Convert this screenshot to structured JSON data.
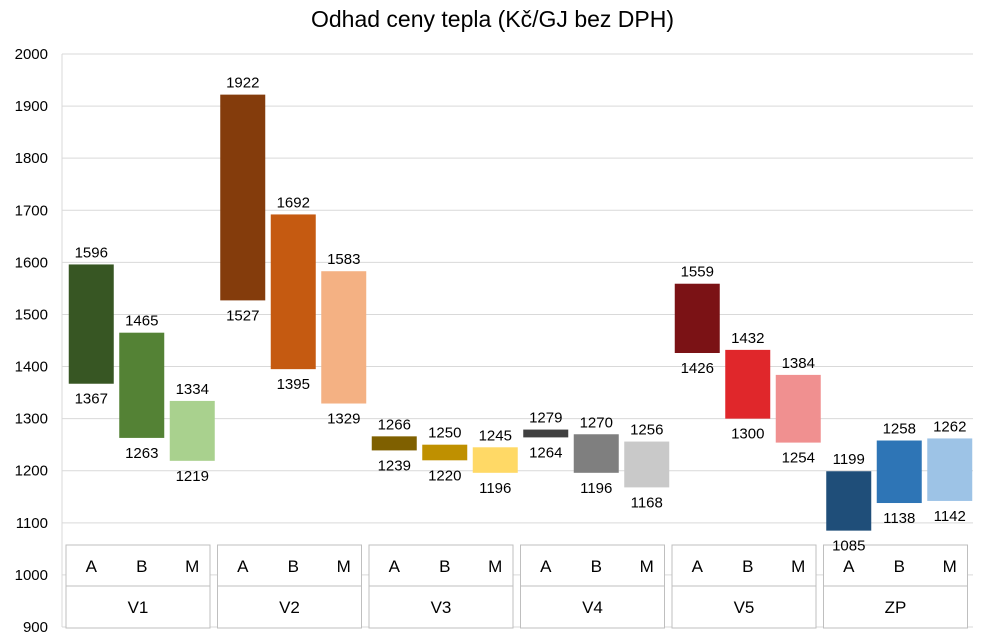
{
  "chart_data": {
    "type": "bar",
    "subtype": "floating range bars",
    "title": "Odhad ceny tepla (Kč/GJ bez DPH)",
    "xlabel": "",
    "ylabel": "",
    "ylim": [
      900,
      2000
    ],
    "yticks": [
      900,
      1000,
      1100,
      1200,
      1300,
      1400,
      1500,
      1600,
      1700,
      1800,
      1900,
      2000
    ],
    "grid": true,
    "groups": [
      {
        "name": "V1",
        "bars": [
          {
            "category": "A",
            "low": 1367,
            "high": 1596,
            "color": "#375623"
          },
          {
            "category": "B",
            "low": 1263,
            "high": 1465,
            "color": "#548235"
          },
          {
            "category": "M",
            "low": 1219,
            "high": 1334,
            "color": "#A9D18E"
          }
        ]
      },
      {
        "name": "V2",
        "bars": [
          {
            "category": "A",
            "low": 1527,
            "high": 1922,
            "color": "#843C0C"
          },
          {
            "category": "B",
            "low": 1395,
            "high": 1692,
            "color": "#C55A11"
          },
          {
            "category": "M",
            "low": 1329,
            "high": 1583,
            "color": "#F4B183"
          }
        ]
      },
      {
        "name": "V3",
        "bars": [
          {
            "category": "A",
            "low": 1239,
            "high": 1266,
            "color": "#7F6000"
          },
          {
            "category": "B",
            "low": 1220,
            "high": 1250,
            "color": "#BF9000"
          },
          {
            "category": "M",
            "low": 1196,
            "high": 1245,
            "color": "#FFD966"
          }
        ]
      },
      {
        "name": "V4",
        "bars": [
          {
            "category": "A",
            "low": 1264,
            "high": 1279,
            "color": "#404040"
          },
          {
            "category": "B",
            "low": 1196,
            "high": 1270,
            "color": "#7F7F7F"
          },
          {
            "category": "M",
            "low": 1168,
            "high": 1256,
            "color": "#C9C9C9"
          }
        ]
      },
      {
        "name": "V5",
        "bars": [
          {
            "category": "A",
            "low": 1426,
            "high": 1559,
            "color": "#7B1215"
          },
          {
            "category": "B",
            "low": 1300,
            "high": 1432,
            "color": "#E0272B"
          },
          {
            "category": "M",
            "low": 1254,
            "high": 1384,
            "color": "#F09090"
          }
        ]
      },
      {
        "name": "ZP",
        "bars": [
          {
            "category": "A",
            "low": 1085,
            "high": 1199,
            "color": "#1F4E79"
          },
          {
            "category": "B",
            "low": 1138,
            "high": 1258,
            "color": "#2E75B6"
          },
          {
            "category": "M",
            "low": 1142,
            "high": 1262,
            "color": "#9DC3E6"
          }
        ]
      }
    ]
  }
}
